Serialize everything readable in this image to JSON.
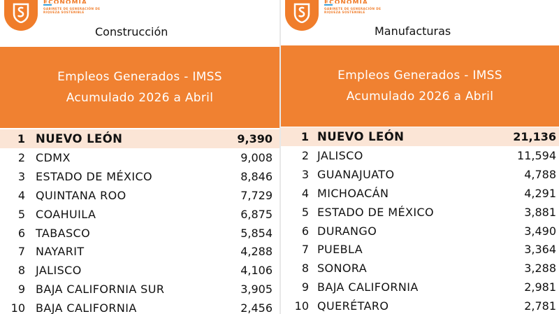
{
  "colors": {
    "accent": "#f08131",
    "highlight_row": "#fbe5d6",
    "brand_blue": "#3aa0d8"
  },
  "brand": {
    "word": "ECONOMÍA",
    "subtitle": "GABINETE DE GENERACIÓN DE RIQUEZA SOSTENIBLE",
    "logo_icon": "shield-s-icon"
  },
  "panels": [
    {
      "sector": "Construcción",
      "header_line1": "Empleos Generados - IMSS",
      "header_line2": "Acumulado 2026 a Abril",
      "rows": [
        {
          "rank": "1",
          "state": "NUEVO LEÓN",
          "value": "9,390"
        },
        {
          "rank": "2",
          "state": "CDMX",
          "value": "9,008"
        },
        {
          "rank": "3",
          "state": "ESTADO DE MÉXICO",
          "value": "8,846"
        },
        {
          "rank": "4",
          "state": "QUINTANA ROO",
          "value": "7,729"
        },
        {
          "rank": "5",
          "state": "COAHUILA",
          "value": "6,875"
        },
        {
          "rank": "6",
          "state": "TABASCO",
          "value": "5,854"
        },
        {
          "rank": "7",
          "state": "NAYARIT",
          "value": "4,288"
        },
        {
          "rank": "8",
          "state": "JALISCO",
          "value": "4,106"
        },
        {
          "rank": "9",
          "state": "BAJA CALIFORNIA SUR",
          "value": "3,905"
        },
        {
          "rank": "10",
          "state": "BAJA CALIFORNIA",
          "value": "2,456"
        }
      ]
    },
    {
      "sector": "Manufacturas",
      "header_line1": "Empleos Generados - IMSS",
      "header_line2": "Acumulado 2026 a Abril",
      "rows": [
        {
          "rank": "1",
          "state": "NUEVO LEÓN",
          "value": "21,136"
        },
        {
          "rank": "2",
          "state": "JALISCO",
          "value": "11,594"
        },
        {
          "rank": "3",
          "state": "GUANAJUATO",
          "value": "4,788"
        },
        {
          "rank": "4",
          "state": "MICHOACÁN",
          "value": "4,291"
        },
        {
          "rank": "5",
          "state": "ESTADO DE MÉXICO",
          "value": "3,881"
        },
        {
          "rank": "6",
          "state": "DURANGO",
          "value": "3,490"
        },
        {
          "rank": "7",
          "state": "PUEBLA",
          "value": "3,364"
        },
        {
          "rank": "8",
          "state": "SONORA",
          "value": "3,288"
        },
        {
          "rank": "9",
          "state": "BAJA CALIFORNIA",
          "value": "2,981"
        },
        {
          "rank": "10",
          "state": "QUERÉTARO",
          "value": "2,781"
        }
      ]
    }
  ]
}
